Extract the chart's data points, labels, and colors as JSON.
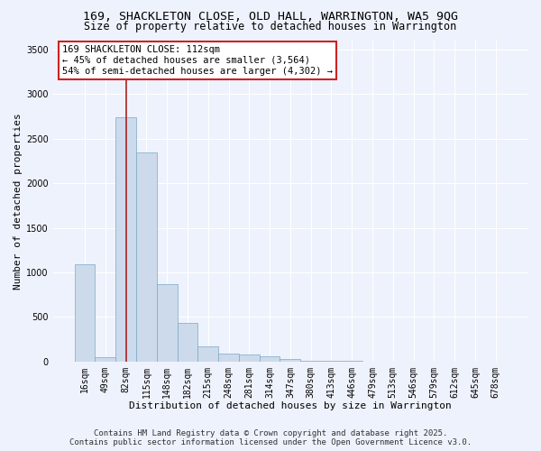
{
  "title": "169, SHACKLETON CLOSE, OLD HALL, WARRINGTON, WA5 9QG",
  "subtitle": "Size of property relative to detached houses in Warrington",
  "xlabel": "Distribution of detached houses by size in Warrington",
  "ylabel": "Number of detached properties",
  "categories": [
    "16sqm",
    "49sqm",
    "82sqm",
    "115sqm",
    "148sqm",
    "182sqm",
    "215sqm",
    "248sqm",
    "281sqm",
    "314sqm",
    "347sqm",
    "380sqm",
    "413sqm",
    "446sqm",
    "479sqm",
    "513sqm",
    "546sqm",
    "579sqm",
    "612sqm",
    "645sqm",
    "678sqm"
  ],
  "values": [
    1090,
    50,
    2740,
    2350,
    870,
    430,
    170,
    90,
    80,
    60,
    30,
    10,
    5,
    3,
    2,
    1,
    0,
    0,
    0,
    0,
    0
  ],
  "bar_color": "#ccdaeb",
  "bar_edgecolor": "#7ba8c8",
  "vline_x_index": 2.0,
  "vline_color": "#aa2222",
  "annotation_text": "169 SHACKLETON CLOSE: 112sqm\n← 45% of detached houses are smaller (3,564)\n54% of semi-detached houses are larger (4,302) →",
  "annotation_box_color": "#ffffff",
  "annotation_box_edgecolor": "#cc2222",
  "ylim": [
    0,
    3600
  ],
  "yticks": [
    0,
    500,
    1000,
    1500,
    2000,
    2500,
    3000,
    3500
  ],
  "background_color": "#eef2fc",
  "plot_bg_color": "#eef2fc",
  "grid_color": "#ffffff",
  "footer_line1": "Contains HM Land Registry data © Crown copyright and database right 2025.",
  "footer_line2": "Contains public sector information licensed under the Open Government Licence v3.0.",
  "title_fontsize": 9.5,
  "subtitle_fontsize": 8.5,
  "xlabel_fontsize": 8,
  "ylabel_fontsize": 8,
  "tick_fontsize": 7,
  "annot_fontsize": 7.5,
  "footer_fontsize": 6.5
}
